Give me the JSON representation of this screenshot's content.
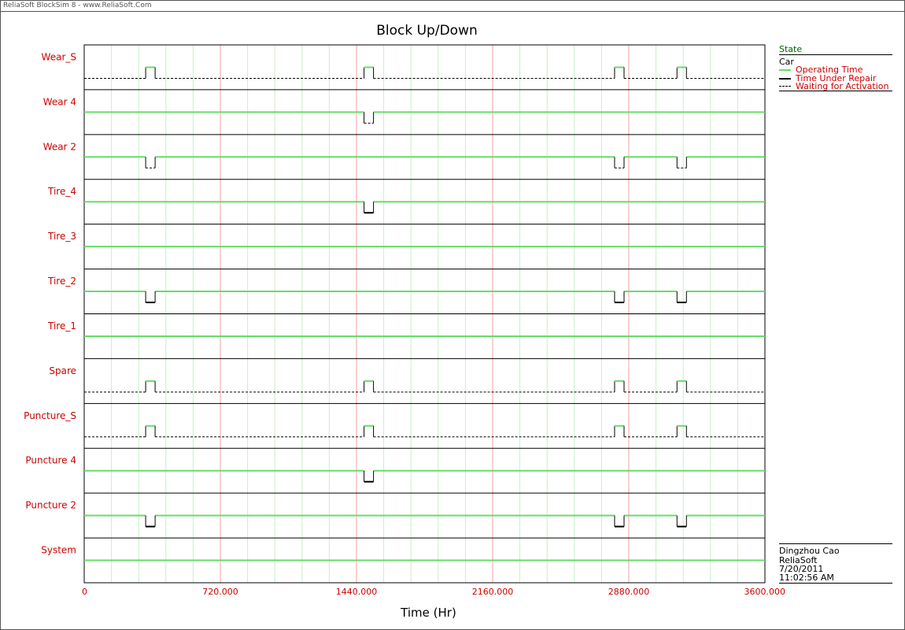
{
  "window": {
    "app_title": "ReliaSoft BlockSim 8 - www.ReliaSoft.Com"
  },
  "legend": {
    "header": "State",
    "group": "Car",
    "items": [
      {
        "label": "Operating Time",
        "color": "#66dd66",
        "style": "solid"
      },
      {
        "label": "Time Under Repair",
        "color": "#000000",
        "style": "solid"
      },
      {
        "label": "Waiting for Activation",
        "color": "#000000",
        "style": "dashed"
      }
    ]
  },
  "info": {
    "author": "Dingzhou Cao",
    "company": "ReliaSoft",
    "date": "7/20/2011",
    "time": "11:02:56 AM"
  },
  "colors": {
    "label": "#cc0000",
    "major_grid": "#f0a0a0",
    "minor_grid": "#c8eec8",
    "up": "#66dd66",
    "down": "#000000"
  },
  "chart_data": {
    "type": "timeline",
    "title": "Block Up/Down",
    "xlabel": "Time (Hr)",
    "xlim": [
      0,
      3600
    ],
    "xticks": [
      "0",
      "720.000",
      "1440.000",
      "2160.000",
      "2880.000",
      "3600.000"
    ],
    "xtick_values": [
      0,
      720,
      1440,
      2160,
      2880,
      3600
    ],
    "series": [
      {
        "name": "Wear_S",
        "baseline": "waiting",
        "events": [
          [
            325,
            375,
            "operating"
          ],
          [
            1480,
            1530,
            "operating"
          ],
          [
            2805,
            2855,
            "operating"
          ],
          [
            3135,
            3185,
            "operating"
          ]
        ]
      },
      {
        "name": "Wear 4",
        "baseline": "operating",
        "events": [
          [
            1480,
            1530,
            "waiting"
          ]
        ]
      },
      {
        "name": "Wear 2",
        "baseline": "operating",
        "events": [
          [
            325,
            375,
            "waiting"
          ],
          [
            2805,
            2855,
            "waiting"
          ],
          [
            3135,
            3185,
            "waiting"
          ]
        ]
      },
      {
        "name": "Tire_4",
        "baseline": "operating",
        "events": [
          [
            1480,
            1530,
            "repair"
          ]
        ]
      },
      {
        "name": "Tire_3",
        "baseline": "operating",
        "events": []
      },
      {
        "name": "Tire_2",
        "baseline": "operating",
        "events": [
          [
            325,
            375,
            "repair"
          ],
          [
            2805,
            2855,
            "repair"
          ],
          [
            3135,
            3185,
            "repair"
          ]
        ]
      },
      {
        "name": "Tire_1",
        "baseline": "operating",
        "events": []
      },
      {
        "name": "Spare",
        "baseline": "waiting",
        "events": [
          [
            325,
            375,
            "operating"
          ],
          [
            1480,
            1530,
            "operating"
          ],
          [
            2805,
            2855,
            "operating"
          ],
          [
            3135,
            3185,
            "operating"
          ]
        ]
      },
      {
        "name": "Puncture_S",
        "baseline": "waiting",
        "events": [
          [
            325,
            375,
            "operating"
          ],
          [
            1480,
            1530,
            "operating"
          ],
          [
            2805,
            2855,
            "operating"
          ],
          [
            3135,
            3185,
            "operating"
          ]
        ]
      },
      {
        "name": "Puncture 4",
        "baseline": "operating",
        "events": [
          [
            1480,
            1530,
            "repair"
          ]
        ]
      },
      {
        "name": "Puncture 2",
        "baseline": "operating",
        "events": [
          [
            325,
            375,
            "repair"
          ],
          [
            2805,
            2855,
            "repair"
          ],
          [
            3135,
            3185,
            "repair"
          ]
        ]
      },
      {
        "name": "System",
        "baseline": "operating",
        "events": []
      }
    ]
  }
}
